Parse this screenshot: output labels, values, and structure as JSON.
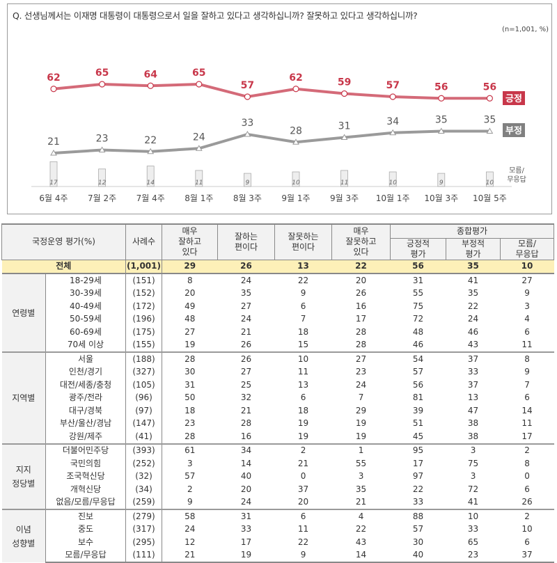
{
  "chart_data": {
    "type": "line",
    "title": "Q. 선생님께서는 이재명 대통령이 대통령으로서 일을 잘하고 있다고 생각하십니까? 잘못하고 있다고 생각하십니까?",
    "note": "(n=1,001, %)",
    "categories": [
      "6월 4주",
      "7월 2주",
      "7월 4주",
      "8월 1주",
      "8월 3주",
      "9월 1주",
      "9월 3주",
      "10월 1주",
      "10월 3주",
      "10월 5주"
    ],
    "series": [
      {
        "name": "긍정",
        "color": "#c8374a",
        "values": [
          62,
          65,
          64,
          65,
          57,
          62,
          59,
          57,
          56,
          56
        ]
      },
      {
        "name": "부정",
        "color": "#8a8a8a",
        "values": [
          21,
          23,
          22,
          24,
          33,
          28,
          31,
          34,
          35,
          35
        ]
      },
      {
        "name": "모름/무응답",
        "type": "bar",
        "color": "#eeeeee",
        "values": [
          17,
          12,
          14,
          11,
          9,
          10,
          11,
          10,
          9,
          10
        ]
      }
    ]
  },
  "table": {
    "header": {
      "label": "국정운영 평가(%)",
      "n": "사례수",
      "c1": "매우\n잘하고\n있다",
      "c2": "잘하는\n편이다",
      "c3": "잘못하는\n편이다",
      "c4": "매우\n잘못하고\n있다",
      "group": "종합평가",
      "c5": "긍정적\n평가",
      "c6": "부정적\n평가",
      "c7": "모름/\n무응답"
    },
    "total": {
      "label": "전체",
      "n": "(1,001)",
      "v": [
        29,
        26,
        13,
        22,
        56,
        35,
        10
      ]
    },
    "groups": [
      {
        "name": "연령별",
        "rows": [
          {
            "label": "18-29세",
            "n": "(151)",
            "v": [
              8,
              24,
              22,
              20,
              31,
              41,
              27
            ]
          },
          {
            "label": "30-39세",
            "n": "(152)",
            "v": [
              20,
              35,
              9,
              26,
              55,
              35,
              9
            ]
          },
          {
            "label": "40-49세",
            "n": "(172)",
            "v": [
              49,
              27,
              6,
              16,
              75,
              22,
              3
            ]
          },
          {
            "label": "50-59세",
            "n": "(196)",
            "v": [
              48,
              24,
              7,
              17,
              72,
              24,
              4
            ]
          },
          {
            "label": "60-69세",
            "n": "(175)",
            "v": [
              27,
              21,
              18,
              28,
              48,
              46,
              6
            ]
          },
          {
            "label": "70세 이상",
            "n": "(155)",
            "v": [
              19,
              26,
              15,
              28,
              46,
              43,
              11
            ]
          }
        ]
      },
      {
        "name": "지역별",
        "rows": [
          {
            "label": "서울",
            "n": "(188)",
            "v": [
              28,
              26,
              10,
              27,
              54,
              37,
              8
            ]
          },
          {
            "label": "인천/경기",
            "n": "(327)",
            "v": [
              30,
              27,
              11,
              23,
              57,
              33,
              9
            ]
          },
          {
            "label": "대전/세종/충청",
            "n": "(105)",
            "v": [
              31,
              25,
              13,
              24,
              56,
              37,
              7
            ]
          },
          {
            "label": "광주/전라",
            "n": "(96)",
            "v": [
              50,
              32,
              6,
              7,
              81,
              13,
              6
            ]
          },
          {
            "label": "대구/경북",
            "n": "(97)",
            "v": [
              18,
              21,
              18,
              29,
              39,
              47,
              14
            ]
          },
          {
            "label": "부산/울산/경남",
            "n": "(147)",
            "v": [
              23,
              28,
              19,
              19,
              51,
              38,
              11
            ]
          },
          {
            "label": "강원/제주",
            "n": "(41)",
            "v": [
              28,
              16,
              19,
              19,
              45,
              38,
              17
            ]
          }
        ]
      },
      {
        "name": "지지\n정당별",
        "rows": [
          {
            "label": "더불어민주당",
            "n": "(393)",
            "v": [
              61,
              34,
              2,
              1,
              95,
              3,
              2
            ]
          },
          {
            "label": "국민의힘",
            "n": "(252)",
            "v": [
              3,
              14,
              21,
              55,
              17,
              75,
              8
            ]
          },
          {
            "label": "조국혁신당",
            "n": "(32)",
            "v": [
              57,
              40,
              0,
              3,
              97,
              3,
              0
            ]
          },
          {
            "label": "개혁신당",
            "n": "(34)",
            "v": [
              2,
              20,
              37,
              35,
              22,
              72,
              6
            ]
          },
          {
            "label": "없음/모름/무응답",
            "n": "(259)",
            "v": [
              9,
              24,
              20,
              21,
              33,
              41,
              26
            ]
          }
        ]
      },
      {
        "name": "이념\n성향별",
        "rows": [
          {
            "label": "진보",
            "n": "(279)",
            "v": [
              58,
              31,
              6,
              4,
              88,
              10,
              2
            ]
          },
          {
            "label": "중도",
            "n": "(317)",
            "v": [
              24,
              33,
              11,
              22,
              57,
              33,
              10
            ]
          },
          {
            "label": "보수",
            "n": "(295)",
            "v": [
              12,
              17,
              22,
              43,
              30,
              65,
              6
            ]
          },
          {
            "label": "모름/무응답",
            "n": "(111)",
            "v": [
              21,
              19,
              9,
              14,
              40,
              23,
              37
            ]
          }
        ]
      }
    ]
  }
}
